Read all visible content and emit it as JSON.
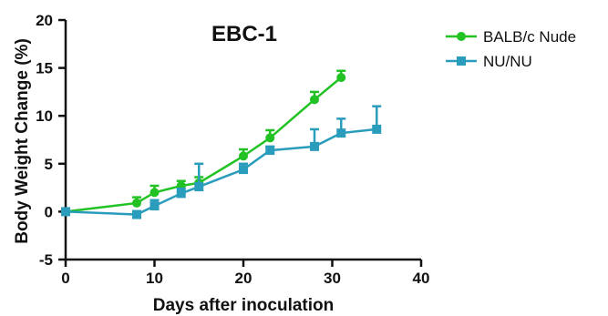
{
  "chart_data": {
    "type": "line",
    "title": "EBC-1",
    "xlabel": "Days after inoculation",
    "ylabel": "Body Weight Change (%)",
    "xlim": [
      0,
      40
    ],
    "ylim": [
      -5,
      20
    ],
    "xticks": [
      "0",
      "10",
      "20",
      "30",
      "40"
    ],
    "yticks": [
      "-5",
      "0",
      "5",
      "10",
      "15",
      "20"
    ],
    "grid": false,
    "legend_position": "top-right",
    "series": [
      {
        "name": "BALB/c Nude",
        "color": "#22c224",
        "marker": "circle",
        "x": [
          0,
          8,
          10,
          13,
          15,
          20,
          23,
          28,
          31
        ],
        "y": [
          0,
          0.9,
          2.0,
          2.7,
          3.0,
          5.8,
          7.7,
          11.7,
          14.0
        ],
        "err": [
          0,
          0.6,
          0.7,
          0.5,
          0.6,
          0.7,
          0.8,
          0.8,
          0.7
        ]
      },
      {
        "name": "NU/NU",
        "color": "#2a9dbd",
        "marker": "square",
        "x": [
          0,
          8,
          10,
          13,
          15,
          20,
          23,
          28,
          31,
          35
        ],
        "y": [
          0,
          -0.3,
          0.6,
          1.9,
          2.6,
          4.4,
          6.4,
          6.8,
          8.2,
          8.6
        ],
        "err": [
          0,
          0.3,
          0.6,
          0.5,
          2.4,
          0.6,
          0.4,
          1.8,
          1.5,
          2.4
        ]
      }
    ]
  }
}
